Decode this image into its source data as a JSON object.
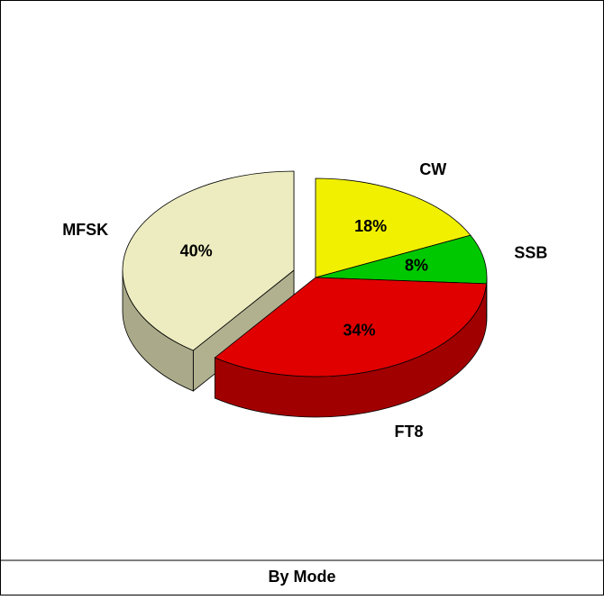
{
  "chart_data": {
    "type": "pie3d",
    "title": "By Mode",
    "categories": [
      "CW",
      "SSB",
      "FT8",
      "MFSK"
    ],
    "values": [
      18,
      8,
      34,
      40
    ],
    "value_labels": [
      "18%",
      "8%",
      "34%",
      "40%"
    ],
    "colors": [
      "#f0f000",
      "#00c800",
      "#e00000",
      "#ececc0"
    ],
    "exploded": "MFSK"
  }
}
